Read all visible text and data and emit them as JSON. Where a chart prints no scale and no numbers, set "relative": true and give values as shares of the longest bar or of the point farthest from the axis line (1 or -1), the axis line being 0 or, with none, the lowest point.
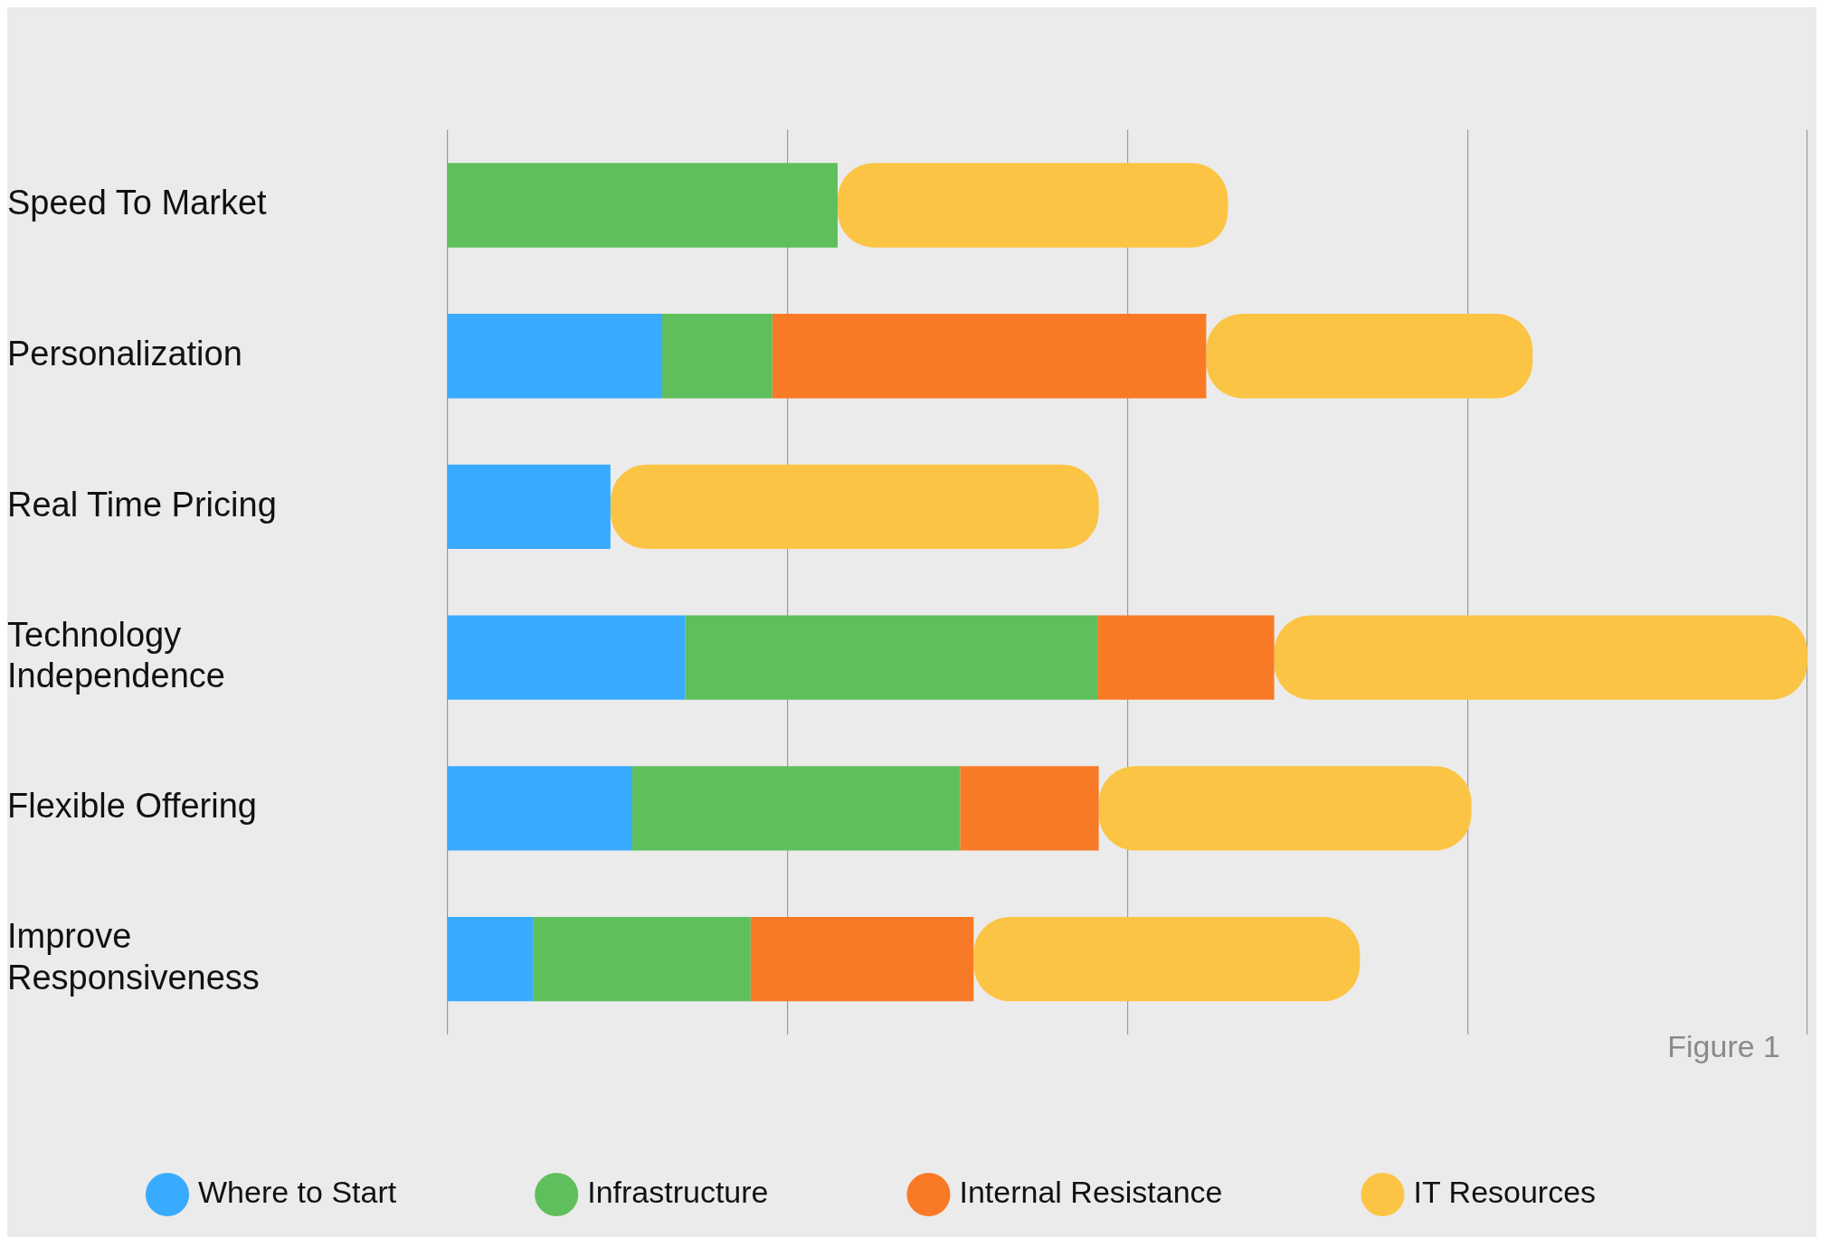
{
  "chart_data": {
    "type": "bar",
    "orientation": "horizontal",
    "stacked": true,
    "relative": true,
    "categories": [
      "Speed To Market",
      "Personalization",
      "Real Time Pricing",
      "Technology Independence",
      "Flexible Offering",
      "Improve Responsiveness"
    ],
    "series": [
      {
        "name": "Where to Start",
        "color": "#39abfe",
        "values": [
          0,
          0.158,
          0.12,
          0.175,
          0.136,
          0.063
        ]
      },
      {
        "name": "Infrastructure",
        "color": "#5fbf5c",
        "values": [
          0.287,
          0.081,
          0,
          0.303,
          0.241,
          0.16
        ]
      },
      {
        "name": "Internal Resistance",
        "color": "#f97a26",
        "values": [
          0,
          0.319,
          0,
          0.13,
          0.102,
          0.164
        ]
      },
      {
        "name": "IT Resources",
        "color": "#fcc444",
        "values": [
          0.287,
          0.24,
          0.359,
          0.392,
          0.274,
          0.284
        ]
      }
    ],
    "grid": "x",
    "legend": "bottom",
    "annotations": [
      "Figure 1"
    ]
  }
}
